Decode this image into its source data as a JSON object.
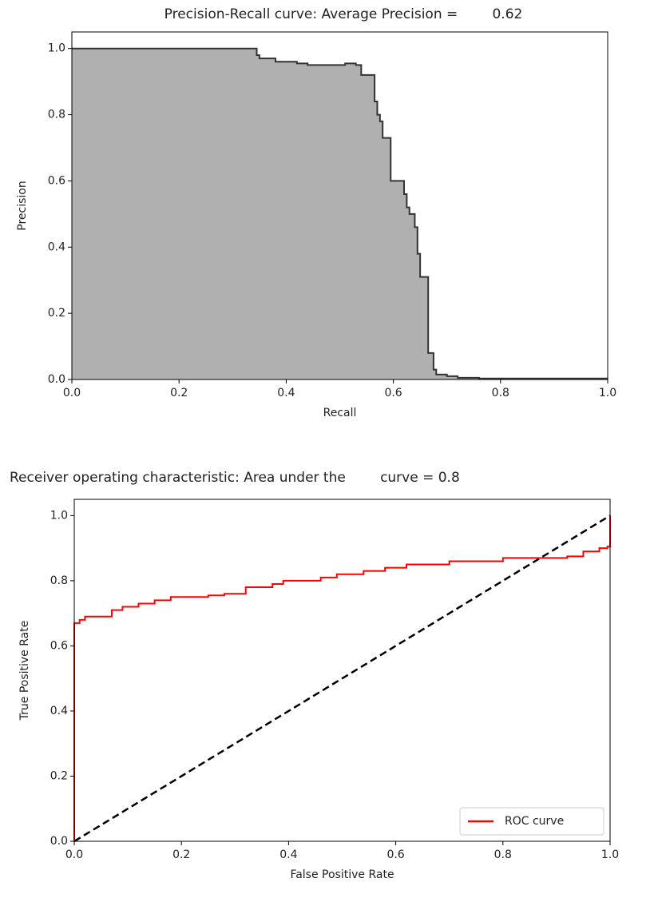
{
  "chart_data": [
    {
      "type": "area",
      "step": "post",
      "title": "Precision-Recall curve: Average Precision =        0.62",
      "xlabel": "Recall",
      "ylabel": "Precision",
      "x": [
        0,
        0.34,
        0.345,
        0.35,
        0.38,
        0.42,
        0.44,
        0.51,
        0.53,
        0.54,
        0.56,
        0.565,
        0.57,
        0.575,
        0.58,
        0.595,
        0.6,
        0.62,
        0.625,
        0.63,
        0.64,
        0.645,
        0.65,
        0.66,
        0.665,
        0.675,
        0.68,
        0.7,
        0.72,
        0.76,
        1.0
      ],
      "values": [
        1.0,
        1.0,
        0.98,
        0.97,
        0.96,
        0.955,
        0.95,
        0.955,
        0.95,
        0.92,
        0.92,
        0.84,
        0.8,
        0.78,
        0.73,
        0.6,
        0.6,
        0.56,
        0.52,
        0.5,
        0.46,
        0.38,
        0.31,
        0.31,
        0.08,
        0.03,
        0.015,
        0.01,
        0.005,
        0.003,
        0.003
      ],
      "color": "#b0b0b0",
      "line_color": "#333333",
      "xlim": [
        0,
        1
      ],
      "ylim": [
        0,
        1.05
      ],
      "xticks": [
        {
          "value": 0,
          "label": "0.0"
        },
        0.2,
        0.4,
        0.6,
        0.8,
        {
          "value": 1,
          "label": "1.0"
        }
      ],
      "yticks": [
        {
          "value": 0,
          "label": "0.0"
        },
        0.2,
        0.4,
        0.6,
        0.8,
        {
          "value": 1,
          "label": "1.0"
        }
      ]
    },
    {
      "type": "line",
      "step": "post",
      "title": "Receiver operating characteristic: Area under the        curve = 0.8",
      "xlabel": "False Positive Rate",
      "ylabel": "True Positive Rate",
      "series": [
        {
          "name": "ROC curve",
          "color": "red",
          "x": [
            0,
            0,
            0.01,
            0.02,
            0.05,
            0.07,
            0.09,
            0.12,
            0.15,
            0.18,
            0.25,
            0.28,
            0.32,
            0.37,
            0.39,
            0.46,
            0.49,
            0.54,
            0.58,
            0.62,
            0.7,
            0.8,
            0.92,
            0.95,
            0.98,
            0.995,
            1.0
          ],
          "values": [
            0,
            0.67,
            0.68,
            0.69,
            0.69,
            0.71,
            0.72,
            0.73,
            0.74,
            0.75,
            0.755,
            0.76,
            0.78,
            0.79,
            0.8,
            0.81,
            0.82,
            0.83,
            0.84,
            0.85,
            0.86,
            0.87,
            0.875,
            0.89,
            0.9,
            0.905,
            1.0
          ]
        }
      ],
      "reference_line": {
        "x": [
          0,
          1
        ],
        "values": [
          0,
          1
        ],
        "color": "black"
      },
      "legend": "lower right",
      "xlim": [
        0,
        1
      ],
      "ylim": [
        0,
        1.05
      ],
      "xticks": [
        {
          "value": 0,
          "label": "0.0"
        },
        0.2,
        0.4,
        0.6,
        0.8,
        {
          "value": 1,
          "label": "1.0"
        }
      ],
      "yticks": [
        {
          "value": 0,
          "label": "0.0"
        },
        0.2,
        0.4,
        0.6,
        0.8,
        {
          "value": 1,
          "label": "1.0"
        }
      ]
    }
  ]
}
